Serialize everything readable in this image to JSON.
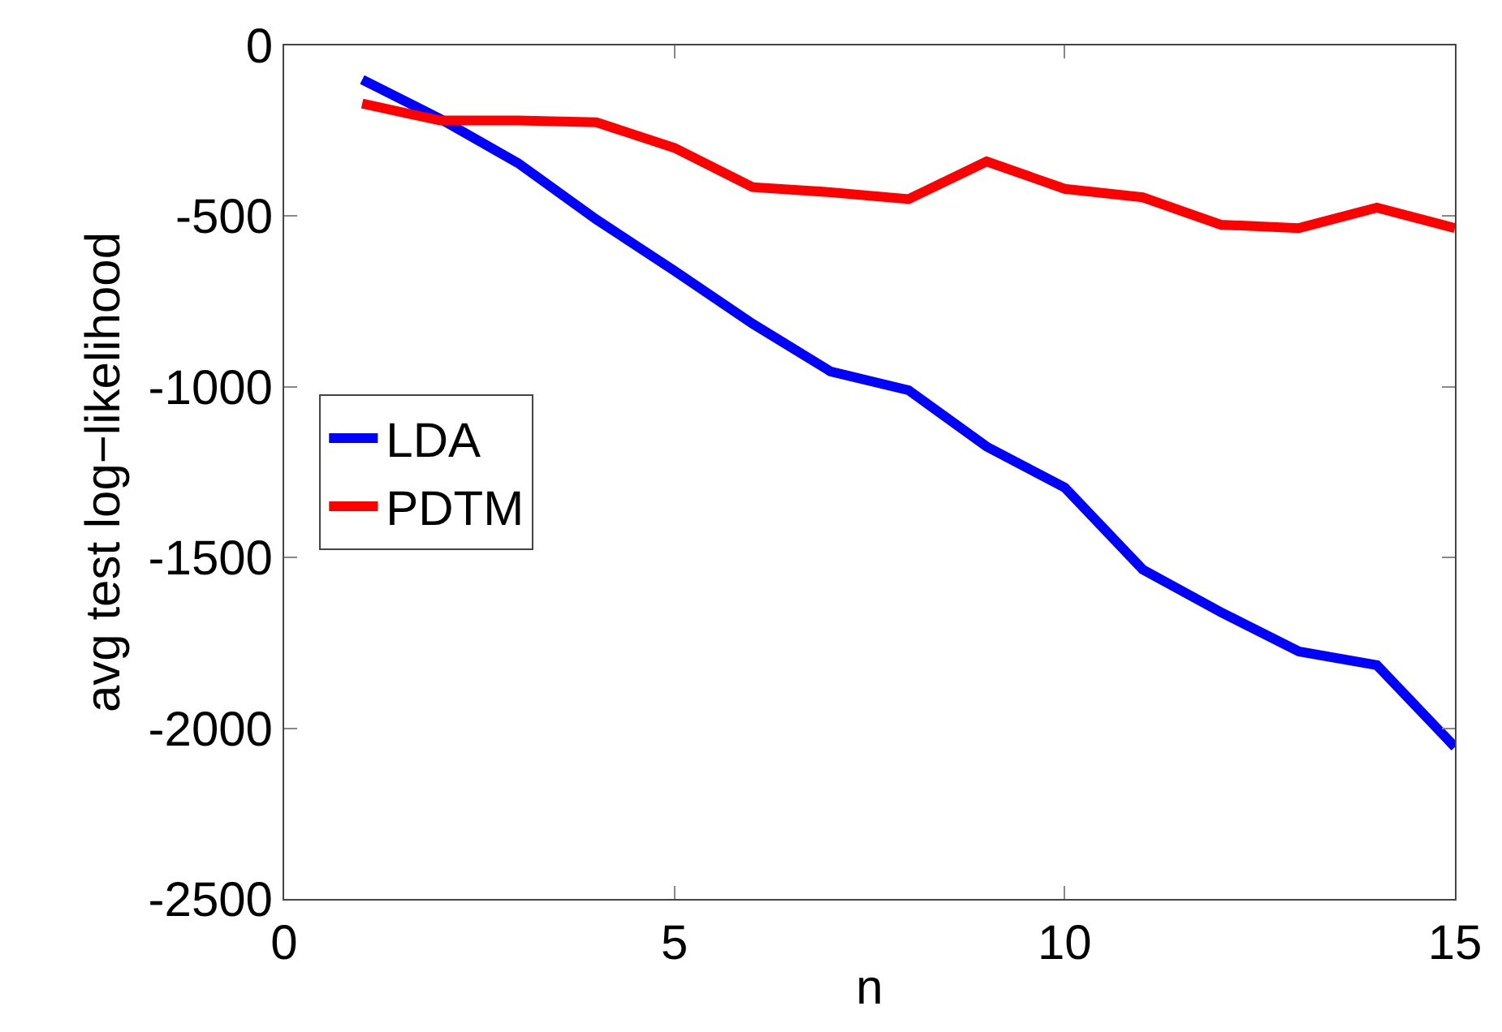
{
  "chart_data": {
    "type": "line",
    "xlabel": "n",
    "ylabel": "avg test log−likelihood",
    "x": [
      1,
      2,
      3,
      4,
      5,
      6,
      7,
      8,
      9,
      10,
      11,
      12,
      13,
      14,
      15
    ],
    "series": [
      {
        "name": "LDA",
        "color": "#0000ff",
        "values": [
          -100,
          -215,
          -345,
          -510,
          -660,
          -815,
          -955,
          -1010,
          -1175,
          -1295,
          -1535,
          -1660,
          -1775,
          -1815,
          -2055
        ]
      },
      {
        "name": "PDTM",
        "color": "#ff0000",
        "values": [
          -170,
          -220,
          -220,
          -225,
          -300,
          -415,
          -430,
          -450,
          -340,
          -420,
          -445,
          -525,
          -535,
          -475,
          -535
        ]
      }
    ],
    "xlim": [
      0,
      15
    ],
    "xticks": [
      0,
      5,
      10,
      15
    ],
    "ylim": [
      -2500,
      0
    ],
    "yticks": [
      -2500,
      -2000,
      -1500,
      -1000,
      -500,
      0
    ],
    "legend": "left",
    "marker": "none",
    "line_style": "solid"
  }
}
